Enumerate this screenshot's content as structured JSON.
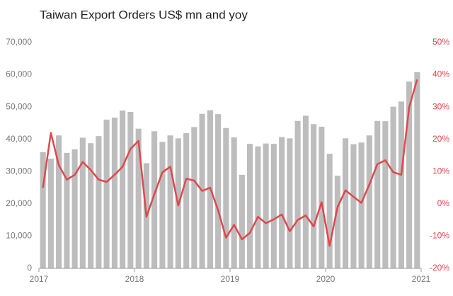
{
  "chart_data": {
    "type": "bar-line",
    "title": "Taiwan Export Orders US$ mn and yoy",
    "xlim": [
      2017,
      2021
    ],
    "xticks": [
      2017,
      2018,
      2019,
      2020,
      2021
    ],
    "x": [
      2017.042,
      2017.125,
      2017.208,
      2017.292,
      2017.375,
      2017.458,
      2017.542,
      2017.625,
      2017.708,
      2017.792,
      2017.875,
      2017.958,
      2018.042,
      2018.125,
      2018.208,
      2018.292,
      2018.375,
      2018.458,
      2018.542,
      2018.625,
      2018.708,
      2018.792,
      2018.875,
      2018.958,
      2019.042,
      2019.125,
      2019.208,
      2019.292,
      2019.375,
      2019.458,
      2019.542,
      2019.625,
      2019.708,
      2019.792,
      2019.875,
      2019.958,
      2020.042,
      2020.125,
      2020.208,
      2020.292,
      2020.375,
      2020.458,
      2020.542,
      2020.625,
      2020.708,
      2020.792,
      2020.875,
      2020.958
    ],
    "ylim": [
      0,
      70000
    ],
    "yticks": [
      0,
      {
        "value": 10000,
        "label": "10,000"
      },
      {
        "value": 20000,
        "label": "20,000"
      },
      {
        "value": 30000,
        "label": "30,000"
      },
      {
        "value": 40000,
        "label": "40,000"
      },
      {
        "value": 50000,
        "label": "50,000"
      },
      {
        "value": 60000,
        "label": "60,000"
      },
      {
        "value": 70000,
        "label": "70,000"
      }
    ],
    "y2lim": [
      -20,
      50
    ],
    "y2ticks": [
      {
        "value": -20,
        "label": "-20%"
      },
      {
        "value": -10,
        "label": "-10%"
      },
      {
        "value": 0,
        "label": "0%"
      },
      {
        "value": 10,
        "label": "10%"
      },
      {
        "value": 20,
        "label": "20%"
      },
      {
        "value": 30,
        "label": "30%"
      },
      {
        "value": 40,
        "label": "40%"
      },
      {
        "value": 50,
        "label": "50%"
      }
    ],
    "series": [
      {
        "type": "bar",
        "color": "#bdbdbd",
        "values": [
          36000,
          34000,
          41200,
          35800,
          36900,
          40500,
          38800,
          41000,
          46100,
          46700,
          48900,
          48500,
          43300,
          32600,
          42500,
          39200,
          41200,
          40300,
          41900,
          43800,
          47900,
          49000,
          47800,
          43500,
          40600,
          29000,
          38600,
          37800,
          38700,
          38600,
          40700,
          40300,
          45700,
          47300,
          44700,
          43900,
          35500,
          28700,
          40300,
          38500,
          39000,
          41200,
          45700,
          45600,
          50100,
          51700,
          57900,
          60800
        ]
      },
      {
        "type": "line",
        "axis": "y2",
        "color": "#e0474c",
        "values": [
          5,
          22,
          12,
          7.5,
          9,
          13,
          10.5,
          7.5,
          6.8,
          9,
          11.5,
          17,
          19.5,
          -4,
          3,
          9.8,
          11.5,
          -0.5,
          7.8,
          7.2,
          4,
          5,
          -2,
          -10.5,
          -6.5,
          -11,
          -9,
          -4,
          -6,
          -4.8,
          -3.3,
          -8.5,
          -5,
          -3.6,
          -7,
          0.5,
          -13,
          -1,
          4.2,
          2.2,
          0.3,
          6,
          12.3,
          13.5,
          9.8,
          9,
          30,
          38.5
        ]
      }
    ]
  }
}
